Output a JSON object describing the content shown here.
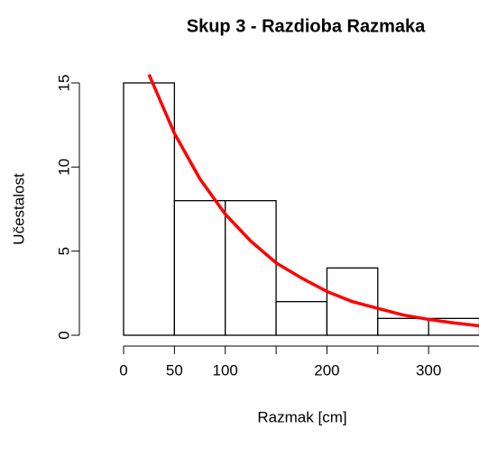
{
  "chart_data": {
    "type": "histogram",
    "title": "Skup 3 - Razdioba Razmaka",
    "x_label": "Razmak [cm]",
    "y_label": "Učestalost",
    "bins": [
      0,
      50,
      100,
      150,
      200,
      250,
      300,
      350
    ],
    "values": [
      15,
      8,
      8,
      2,
      4,
      1,
      1
    ],
    "color": "#ffffff",
    "edge_color": "#000000",
    "curve": {
      "color": "#ff0000",
      "x": [
        25,
        50,
        75,
        100,
        125,
        150,
        175,
        200,
        225,
        250,
        275,
        300,
        325,
        350
      ],
      "values": [
        15.5,
        12.0,
        9.3,
        7.2,
        5.6,
        4.3,
        3.4,
        2.6,
        2.0,
        1.6,
        1.2,
        0.94,
        0.73,
        0.56
      ]
    },
    "xlim": [
      0,
      350
    ],
    "ylim": [
      0,
      15
    ],
    "xticks": [
      0,
      50,
      100,
      {
        "value": 150,
        "label": null
      },
      200,
      {
        "value": 250,
        "label": null
      },
      300,
      {
        "value": 350,
        "label": null
      }
    ],
    "yticks": [
      0,
      5,
      10,
      15
    ]
  }
}
